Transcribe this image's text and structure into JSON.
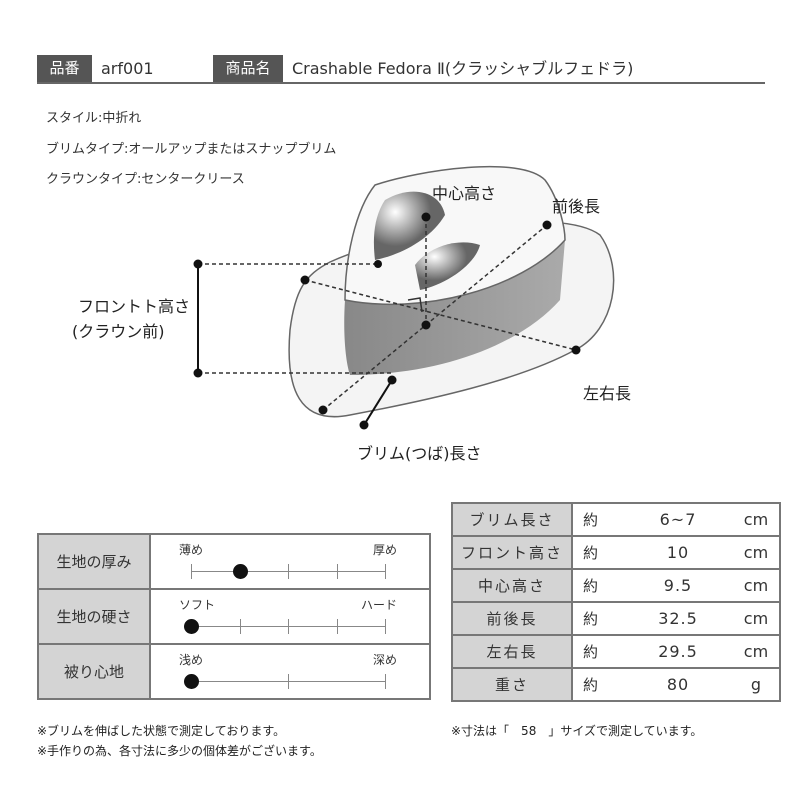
{
  "header": {
    "code_label": "品番",
    "code": "arf001",
    "name_label": "商品名",
    "name": "Crashable Fedora Ⅱ(クラッシャブルフェドラ)"
  },
  "specs": [
    "スタイル:中折れ",
    "ブリムタイプ:オールアップまたはスナップブリム",
    "クラウンタイプ:センタークリース"
  ],
  "diagram": {
    "center_height": "中心高さ",
    "front_back": "前後長",
    "front_height_1": "フロントト高さ",
    "front_height_2": "(クラウン前)",
    "left_right": "左右長",
    "brim": "ブリム(つば)長さ"
  },
  "feel": [
    {
      "label": "生地の厚み",
      "low": "薄め",
      "high": "厚め",
      "ticks": 5,
      "level": 1
    },
    {
      "label": "生地の硬さ",
      "low": "ソフト",
      "high": "ハード",
      "ticks": 5,
      "level": 0
    },
    {
      "label": "被り心地",
      "low": "浅め",
      "high": "深め",
      "ticks": 3,
      "level": 0
    }
  ],
  "sizes": [
    {
      "label": "ブリム長さ",
      "approx": "約",
      "value": "6~7",
      "unit": "cm"
    },
    {
      "label": "フロント高さ",
      "approx": "約",
      "value": "10",
      "unit": "cm"
    },
    {
      "label": "中心高さ",
      "approx": "約",
      "value": "9.5",
      "unit": "cm"
    },
    {
      "label": "前後長",
      "approx": "約",
      "value": "32.5",
      "unit": "cm"
    },
    {
      "label": "左右長",
      "approx": "約",
      "value": "29.5",
      "unit": "cm"
    },
    {
      "label": "重さ",
      "approx": "約",
      "value": "80",
      "unit": "g"
    }
  ],
  "notes": {
    "left1": "※ブリムを伸ばした状態で測定しております。",
    "left2": "※手作りの為、各寸法に多少の個体差がございます。",
    "right": "※寸法は「　58　」サイズで測定しています。"
  }
}
